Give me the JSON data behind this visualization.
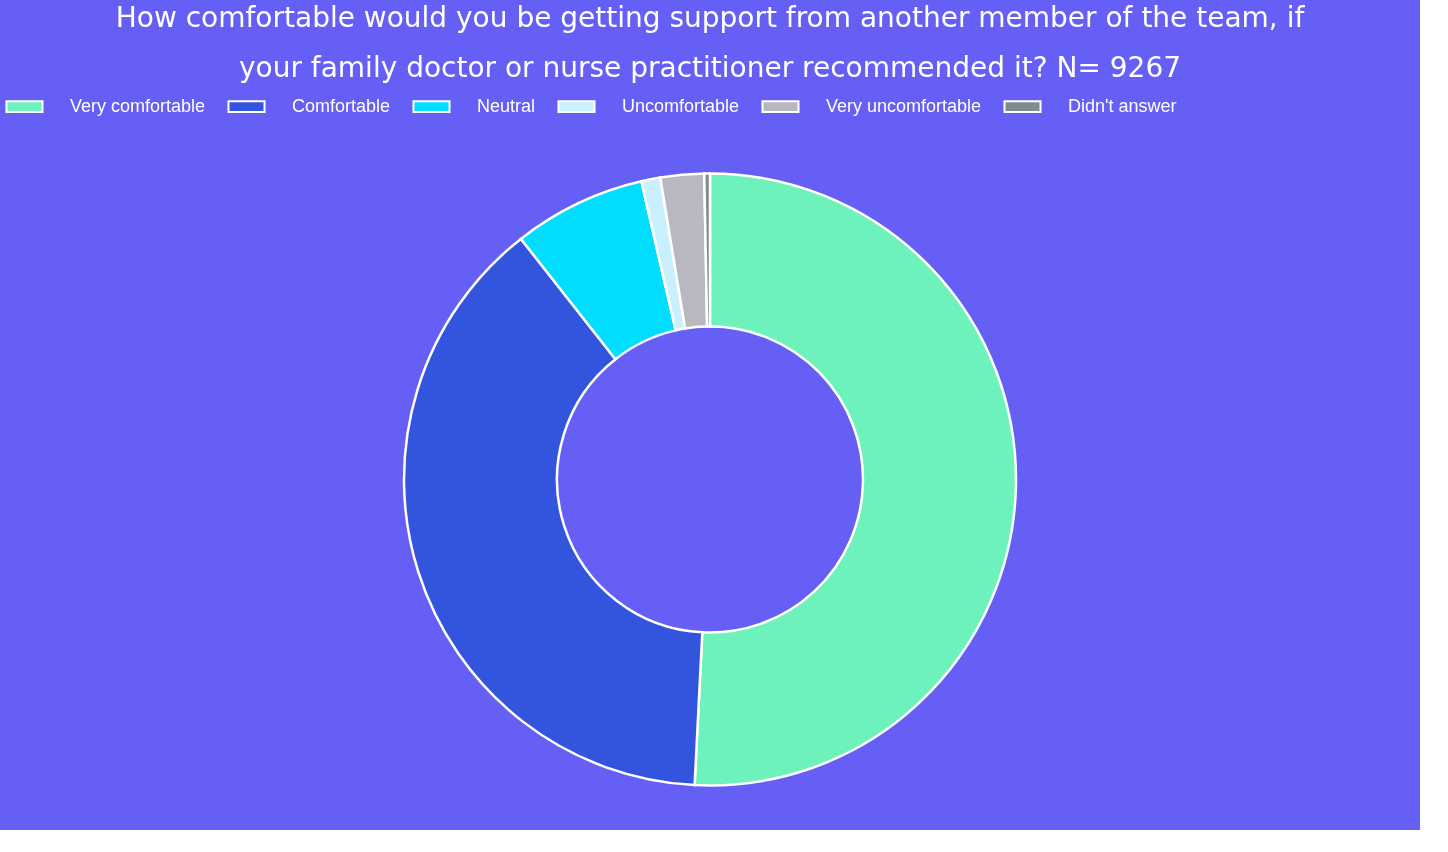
{
  "chart_data": {
    "type": "donut",
    "title": "How comfortable would you be getting support from another member of the team, if your family doctor or nurse practitioner recommended it? N= 9267",
    "categories": [
      "Very comfortable",
      "Comfortable",
      "Neutral",
      "Uncomfortable",
      "Very uncomfortable",
      "Didn't answer"
    ],
    "values": [
      50.8,
      38.6,
      7.0,
      1.0,
      2.3,
      0.3
    ],
    "colors": [
      "#6ef2bc",
      "#3355dd",
      "#00ddff",
      "#c8f0ff",
      "#b8b8c0",
      "#7f8c8d"
    ],
    "legend": "top"
  }
}
